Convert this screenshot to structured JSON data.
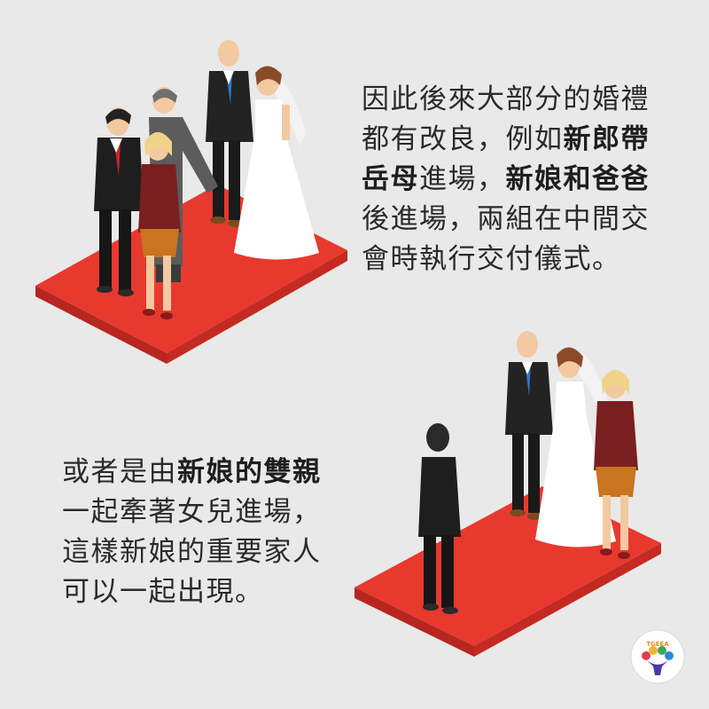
{
  "colors": {
    "background": "#e9e9e9",
    "carpet_top": "#e8392f",
    "carpet_side": "#b82620",
    "suit": "#1f1f1f",
    "dress": "#ffffff",
    "mother_top": "#7a1f1f",
    "mother_skirt": "#c9741e",
    "tie_red": "#d2232a",
    "tie_blue": "#2b7ad2"
  },
  "block1": {
    "line1": "因此後來大部分的婚禮",
    "line2a": "都有改良，例如",
    "line2b": "新郎帶",
    "line3a": "岳母",
    "line3b": "進場，",
    "line3c": "新娘和爸爸",
    "line4": "後進場，兩組在中間交",
    "line5": "會時執行交付儀式。"
  },
  "block2": {
    "line1a": "或者是由",
    "line1b": "新娘的雙親",
    "line2": "一起牽著女兒進場，",
    "line3": "這樣新娘的重要家人",
    "line4": "可以一起出現。"
  },
  "logo": {
    "text": "TGEEA",
    "icon": "tree-logo-icon"
  }
}
